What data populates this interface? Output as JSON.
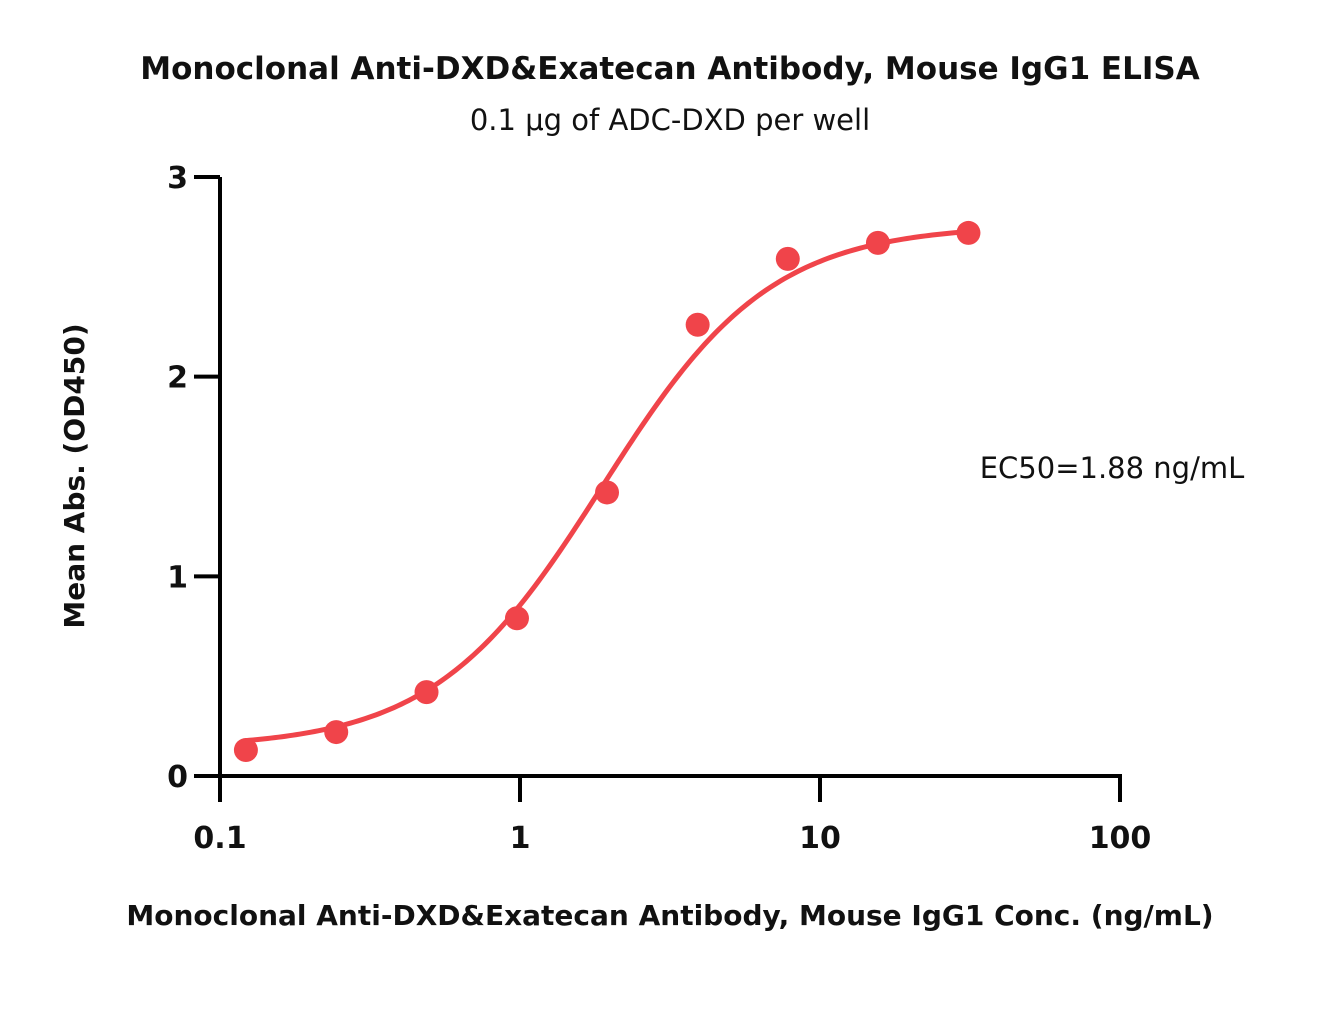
{
  "chart_data": {
    "type": "scatter",
    "title": "Monoclonal Anti-DXD&Exatecan Antibody, Mouse IgG1 ELISA",
    "subtitle": "0.1 μg of ADC-DXD per well",
    "xlabel": "Monoclonal Anti-DXD&Exatecan Antibody, Mouse IgG1 Conc. (ng/mL)",
    "ylabel": "Mean Abs. (OD450)",
    "x_scale": "log",
    "xlim": [
      0.1,
      100
    ],
    "ylim": [
      0,
      3
    ],
    "x_ticks": [
      "0.1",
      "1",
      "10",
      "100"
    ],
    "y_ticks": [
      "0",
      "1",
      "2",
      "3"
    ],
    "annotation": "EC50=1.88 ng/mL",
    "color": "#f0444a",
    "grid": false,
    "series": [
      {
        "x": [
          0.122,
          0.244,
          0.488,
          0.977,
          1.95,
          3.91,
          7.81,
          15.6,
          31.25
        ],
        "y": [
          0.13,
          0.22,
          0.42,
          0.79,
          1.42,
          2.26,
          2.59,
          2.67,
          2.72
        ]
      }
    ],
    "fit": {
      "model": "4PL",
      "bottom": 0.14,
      "top": 2.76,
      "ec50": 1.88,
      "hill": 1.55
    }
  }
}
